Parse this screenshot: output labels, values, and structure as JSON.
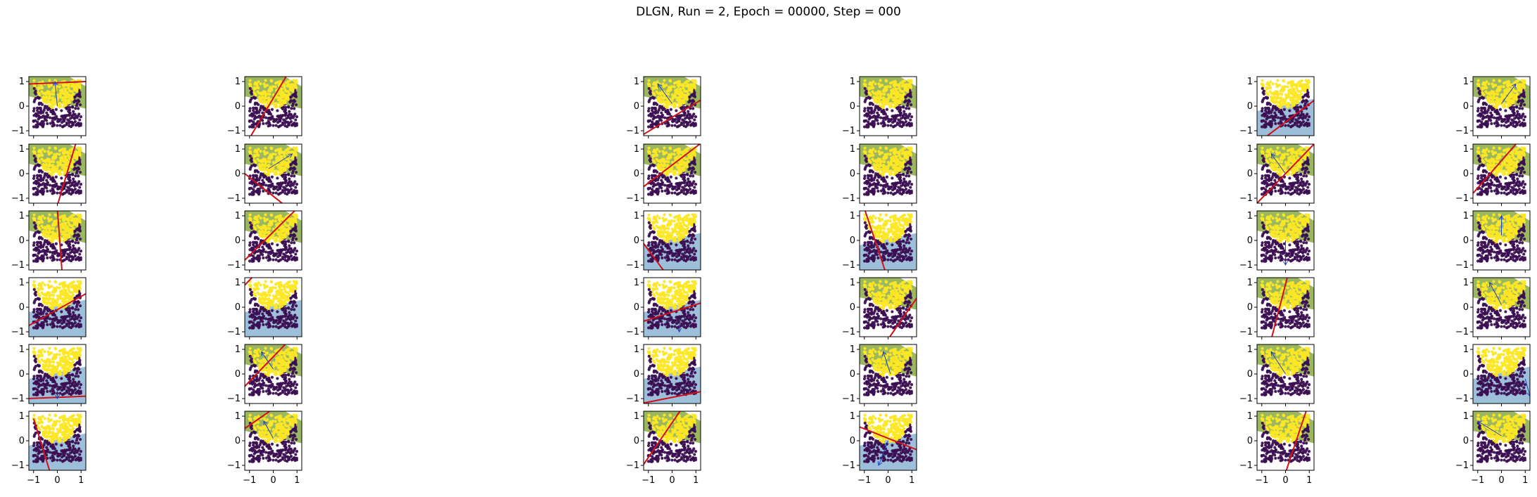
{
  "title": "DLGN, Run = 2, Epoch = 00000, Step = 000",
  "chart_data": {
    "type": "scatter",
    "title": "DLGN, Run = 2, Epoch = 00000, Step = 000",
    "grid": "6x6 small multiples",
    "xlim": [
      -1.2,
      1.2
    ],
    "ylim": [
      -1.2,
      1.2
    ],
    "xticks": [
      -1,
      0,
      1
    ],
    "yticks": [
      -1,
      0,
      1
    ],
    "colors": {
      "class0_points": "#3b0f52",
      "class1_points": "#fde725",
      "region_green": "#9bb861",
      "region_blue": "#9dbfd9",
      "region_yellow": "#fde725",
      "boundary_line": "#d0101a",
      "normal_arrow": "#2040c0"
    },
    "columns": [
      {
        "panels": [
          {
            "line": [
              [
                1.2,
                1.0
              ],
              [
                -1.2,
                0.9
              ]
            ],
            "arrow": [
              [
                0,
                0
              ],
              [
                -0.1,
                1.0
              ]
            ],
            "fill": "green"
          },
          {
            "line": [
              [
                0.8,
                1.3
              ],
              [
                0.0,
                -1.3
              ]
            ],
            "arrow": null,
            "fill": "green"
          },
          {
            "line": [
              [
                0.0,
                1.3
              ],
              [
                0.2,
                -1.3
              ]
            ],
            "arrow": null,
            "fill": "green"
          },
          {
            "line": [
              [
                -1.3,
                -0.8
              ],
              [
                1.3,
                0.6
              ]
            ],
            "arrow": null,
            "fill": "blue"
          },
          {
            "line": [
              [
                -1.3,
                -1.0
              ],
              [
                1.3,
                -0.9
              ]
            ],
            "arrow": [
              [
                0,
                -0.5
              ],
              [
                0,
                -1.0
              ]
            ],
            "fill": "blue"
          },
          {
            "line": [
              [
                -1.0,
                0.9
              ],
              [
                -0.3,
                -1.3
              ]
            ],
            "arrow": null,
            "fill": "blue"
          }
        ]
      },
      {
        "panels": [
          {
            "line": [
              [
                -1.0,
                -1.3
              ],
              [
                0.6,
                1.3
              ]
            ],
            "arrow": null,
            "fill": "green"
          },
          {
            "line": [
              [
                -1.2,
                0.0
              ],
              [
                0.5,
                -1.3
              ]
            ],
            "arrow": [
              [
                -0.2,
                0.2
              ],
              [
                0.8,
                0.8
              ]
            ],
            "fill": "green"
          },
          {
            "line": [
              [
                -1.2,
                -0.8
              ],
              [
                1.0,
                1.3
              ]
            ],
            "arrow": null,
            "fill": "green"
          },
          {
            "line": [
              [
                -1.2,
                0.9
              ],
              [
                -0.8,
                1.3
              ]
            ],
            "arrow": null,
            "fill": "blue"
          },
          {
            "line": [
              [
                -1.2,
                -0.5
              ],
              [
                0.6,
                1.3
              ]
            ],
            "arrow": [
              [
                0,
                0.2
              ],
              [
                -0.5,
                0.9
              ]
            ],
            "fill": "green"
          },
          {
            "line": [
              [
                -1.2,
                0.5
              ],
              [
                0.0,
                1.3
              ]
            ],
            "arrow": [
              [
                0,
                0.1
              ],
              [
                -0.4,
                0.8
              ]
            ],
            "fill": "green"
          }
        ]
      },
      {
        "panels": [
          {
            "line": [
              [
                -1.3,
                -1.2
              ],
              [
                1.3,
                0.3
              ]
            ],
            "arrow": [
              [
                0,
                0.1
              ],
              [
                -0.6,
                0.9
              ]
            ],
            "fill": "green"
          },
          {
            "line": [
              [
                -1.3,
                -0.6
              ],
              [
                1.3,
                1.3
              ]
            ],
            "arrow": null,
            "fill": "green"
          },
          {
            "line": [
              [
                -1.3,
                0.0
              ],
              [
                -0.3,
                -1.3
              ]
            ],
            "arrow": null,
            "fill": "blue"
          },
          {
            "line": [
              [
                -1.3,
                -0.6
              ],
              [
                1.3,
                0.2
              ]
            ],
            "arrow": [
              [
                0.3,
                -0.5
              ],
              [
                0.3,
                -1.0
              ]
            ],
            "fill": "blue"
          },
          {
            "line": [
              [
                -1.3,
                -1.2
              ],
              [
                1.3,
                -0.7
              ]
            ],
            "arrow": null,
            "fill": "blue"
          },
          {
            "line": [
              [
                -1.3,
                -1.1
              ],
              [
                0.4,
                1.3
              ]
            ],
            "arrow": null,
            "fill": "green"
          }
        ]
      },
      {
        "panels": [
          {
            "line": [
              [
                1.3,
                1.3
              ],
              [
                1.3,
                1.3
              ]
            ],
            "arrow": null,
            "fill": "green"
          },
          {
            "line": [
              [
                -1.3,
                1.2
              ],
              [
                -1.0,
                1.3
              ]
            ],
            "arrow": null,
            "fill": "green"
          },
          {
            "line": [
              [
                -1.0,
                1.3
              ],
              [
                -0.1,
                -1.3
              ]
            ],
            "arrow": null,
            "fill": "blue"
          },
          {
            "line": [
              [
                0.0,
                -1.3
              ],
              [
                1.3,
                0.5
              ]
            ],
            "arrow": null,
            "fill": "green"
          },
          {
            "line": [
              [
                1.3,
                1.3
              ],
              [
                1.3,
                1.3
              ]
            ],
            "arrow": [
              [
                0.1,
                0.0
              ],
              [
                -0.2,
                0.9
              ]
            ],
            "fill": "green"
          },
          {
            "line": [
              [
                -1.3,
                0.6
              ],
              [
                1.3,
                -0.4
              ]
            ],
            "arrow": [
              [
                0,
                0.0
              ],
              [
                -0.4,
                -1.0
              ]
            ],
            "fill": "blue"
          }
        ]
      },
      {
        "panels": [
          {
            "line": [
              [
                -0.9,
                -1.3
              ],
              [
                1.3,
                0.3
              ]
            ],
            "arrow": null,
            "fill": "blue"
          },
          {
            "line": [
              [
                -1.3,
                -1.3
              ],
              [
                1.3,
                1.3
              ]
            ],
            "arrow": [
              [
                0,
                0.0
              ],
              [
                -0.6,
                0.8
              ]
            ],
            "fill": "green"
          },
          {
            "line": [
              [
                1.3,
                1.3
              ],
              [
                1.3,
                1.3
              ]
            ],
            "arrow": [
              [
                0,
                0.0
              ],
              [
                0,
                -1.0
              ]
            ],
            "fill": "green"
          },
          {
            "line": [
              [
                -0.6,
                -1.3
              ],
              [
                0.1,
                1.3
              ]
            ],
            "arrow": null,
            "fill": "green"
          },
          {
            "line": [
              [
                1.3,
                1.3
              ],
              [
                1.3,
                1.3
              ]
            ],
            "arrow": [
              [
                0,
                0.0
              ],
              [
                -0.6,
                0.9
              ]
            ],
            "fill": "green"
          },
          {
            "line": [
              [
                0.0,
                -1.3
              ],
              [
                0.9,
                1.3
              ]
            ],
            "arrow": null,
            "fill": "green"
          }
        ]
      },
      {
        "panels": [
          {
            "line": [
              [
                1.3,
                1.3
              ],
              [
                1.3,
                1.3
              ]
            ],
            "arrow": [
              [
                0,
                0.1
              ],
              [
                0.6,
                0.9
              ]
            ],
            "fill": "green"
          },
          {
            "line": [
              [
                -1.2,
                -0.8
              ],
              [
                0.7,
                1.3
              ]
            ],
            "arrow": null,
            "fill": "green"
          },
          {
            "line": [
              [
                1.3,
                1.3
              ],
              [
                1.3,
                1.3
              ]
            ],
            "arrow": [
              [
                0,
                0.2
              ],
              [
                0,
                1.0
              ]
            ],
            "fill": "green"
          },
          {
            "line": [
              [
                1.3,
                1.3
              ],
              [
                1.3,
                1.3
              ]
            ],
            "arrow": [
              [
                0,
                0.1
              ],
              [
                -0.5,
                1.0
              ]
            ],
            "fill": "green"
          },
          {
            "line": [
              [
                1.3,
                1.3
              ],
              [
                1.3,
                1.3
              ]
            ],
            "arrow": [
              [
                1.0,
                -0.2
              ],
              [
                1.2,
                -0.9
              ]
            ],
            "fill": "blue"
          },
          {
            "line": [
              [
                1.3,
                1.3
              ],
              [
                1.3,
                1.3
              ]
            ],
            "arrow": [
              [
                0,
                0.2
              ],
              [
                -1.0,
                0.8
              ]
            ],
            "fill": "green"
          }
        ]
      }
    ]
  }
}
